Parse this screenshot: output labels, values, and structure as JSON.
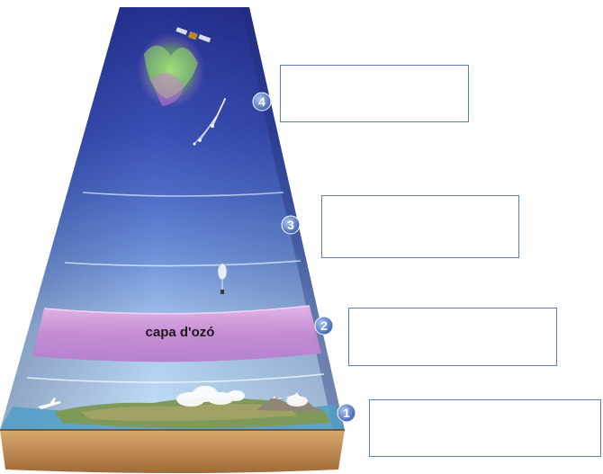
{
  "ozone_layer_label": "capa d'ozó",
  "markers": [
    {
      "number": "4",
      "answer": ""
    },
    {
      "number": "3",
      "answer": ""
    },
    {
      "number": "2",
      "answer": ""
    },
    {
      "number": "1",
      "answer": ""
    }
  ],
  "colors": {
    "thermosphere": "#2d3d9e",
    "mesosphere": "#4a6cc8",
    "stratosphere": "#6f93d8",
    "ozone": "#c68fd0",
    "troposphere": "#8fc6ec",
    "marker": "#5b7fc0",
    "box_border": "#5a7fb3",
    "ground": "#c9995e"
  }
}
